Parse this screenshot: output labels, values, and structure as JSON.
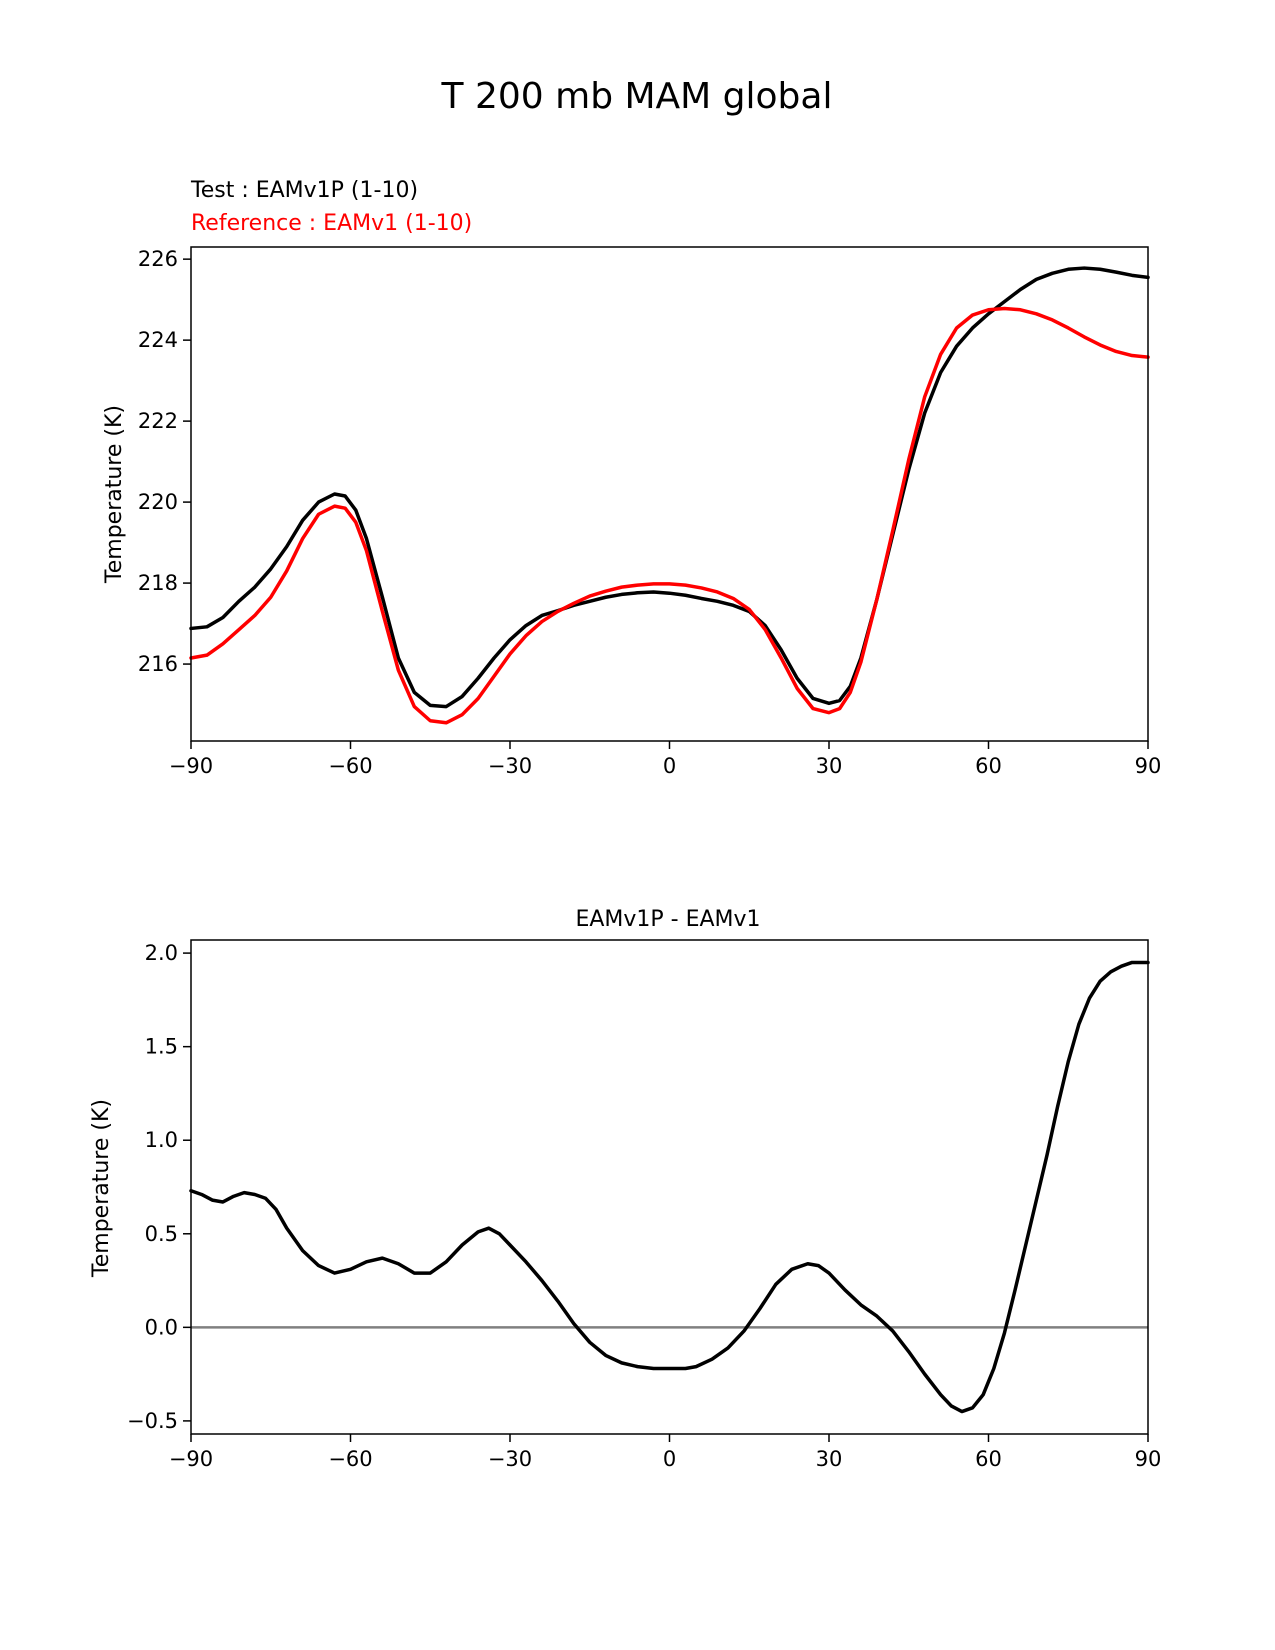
{
  "figure": {
    "title": "T 200 mb MAM global"
  },
  "chart_data": [
    {
      "type": "line",
      "test_label": "Test : EAMv1P (1-10)",
      "reference_label": "Reference : EAMv1 (1-10)",
      "ylabel": "Temperature (K)",
      "xlabel": "",
      "xlim": [
        -90,
        90
      ],
      "ylim": [
        214.1,
        226.3
      ],
      "xticks": [
        -90,
        -60,
        -30,
        0,
        30,
        60,
        90
      ],
      "xtick_labels": [
        "−90",
        "−60",
        "−30",
        "0",
        "30",
        "60",
        "90"
      ],
      "yticks": [
        216,
        218,
        220,
        222,
        224,
        226
      ],
      "ytick_labels": [
        "216",
        "218",
        "220",
        "222",
        "224",
        "226"
      ],
      "series": [
        {
          "name": "Test : EAMv1P (1-10)",
          "color": "#000000",
          "x": [
            -90,
            -87,
            -84,
            -81,
            -78,
            -75,
            -72,
            -69,
            -66,
            -63,
            -61,
            -59,
            -57,
            -54,
            -51,
            -48,
            -45,
            -42,
            -39,
            -36,
            -33,
            -30,
            -27,
            -24,
            -21,
            -18,
            -15,
            -12,
            -9,
            -6,
            -3,
            0,
            3,
            6,
            9,
            12,
            15,
            18,
            21,
            24,
            27,
            30,
            32,
            34,
            36,
            39,
            42,
            45,
            48,
            51,
            54,
            57,
            60,
            63,
            66,
            69,
            72,
            75,
            78,
            81,
            84,
            87,
            90
          ],
          "values": [
            216.88,
            216.92,
            217.15,
            217.55,
            217.9,
            218.35,
            218.9,
            219.55,
            220.0,
            220.2,
            220.15,
            219.8,
            219.1,
            217.65,
            216.15,
            215.3,
            214.98,
            214.95,
            215.2,
            215.65,
            216.15,
            216.6,
            216.95,
            217.2,
            217.32,
            217.45,
            217.55,
            217.65,
            217.72,
            217.76,
            217.78,
            217.75,
            217.7,
            217.62,
            217.55,
            217.45,
            217.3,
            216.95,
            216.35,
            215.65,
            215.15,
            215.03,
            215.1,
            215.45,
            216.15,
            217.6,
            219.2,
            220.8,
            222.2,
            223.2,
            223.85,
            224.3,
            224.65,
            224.95,
            225.25,
            225.5,
            225.65,
            225.75,
            225.78,
            225.75,
            225.68,
            225.6,
            225.55
          ]
        },
        {
          "name": "Reference : EAMv1 (1-10)",
          "color": "#ff0000",
          "x": [
            -90,
            -87,
            -84,
            -81,
            -78,
            -75,
            -72,
            -69,
            -66,
            -63,
            -61,
            -59,
            -57,
            -54,
            -51,
            -48,
            -45,
            -42,
            -39,
            -36,
            -33,
            -30,
            -27,
            -24,
            -21,
            -18,
            -15,
            -12,
            -9,
            -6,
            -3,
            0,
            3,
            6,
            9,
            12,
            15,
            18,
            21,
            24,
            27,
            30,
            32,
            34,
            36,
            39,
            42,
            45,
            48,
            51,
            54,
            57,
            60,
            63,
            66,
            69,
            72,
            75,
            78,
            81,
            84,
            87,
            90
          ],
          "values": [
            216.15,
            216.22,
            216.5,
            216.85,
            217.2,
            217.65,
            218.3,
            219.1,
            219.7,
            219.9,
            219.85,
            219.5,
            218.8,
            217.3,
            215.85,
            214.95,
            214.6,
            214.55,
            214.75,
            215.15,
            215.7,
            216.25,
            216.7,
            217.05,
            217.3,
            217.5,
            217.68,
            217.8,
            217.9,
            217.95,
            217.98,
            217.98,
            217.95,
            217.88,
            217.78,
            217.62,
            217.35,
            216.85,
            216.15,
            215.4,
            214.9,
            214.8,
            214.9,
            215.3,
            216.05,
            217.6,
            219.3,
            221.05,
            222.6,
            223.65,
            224.3,
            224.62,
            224.75,
            224.78,
            224.75,
            224.65,
            224.5,
            224.3,
            224.08,
            223.88,
            223.72,
            223.62,
            223.58
          ]
        }
      ]
    },
    {
      "type": "line",
      "title": "EAMv1P - EAMv1",
      "ylabel": "Temperature (K)",
      "xlabel": "",
      "xlim": [
        -90,
        90
      ],
      "ylim": [
        -0.57,
        2.07
      ],
      "xticks": [
        -90,
        -60,
        -30,
        0,
        30,
        60,
        90
      ],
      "xtick_labels": [
        "−90",
        "−60",
        "−30",
        "0",
        "30",
        "60",
        "90"
      ],
      "yticks": [
        -0.5,
        0.0,
        0.5,
        1.0,
        1.5,
        2.0
      ],
      "ytick_labels": [
        "−0.5",
        "0.0",
        "0.5",
        "1.0",
        "1.5",
        "2.0"
      ],
      "zero_line_color": "#808080",
      "series": [
        {
          "name": "",
          "color": "#000000",
          "x": [
            -90,
            -88,
            -86,
            -84,
            -82,
            -80,
            -78,
            -76,
            -74,
            -72,
            -69,
            -66,
            -63,
            -60,
            -57,
            -54,
            -51,
            -48,
            -45,
            -42,
            -39,
            -36,
            -34,
            -32,
            -30,
            -27,
            -24,
            -21,
            -18,
            -15,
            -12,
            -9,
            -6,
            -3,
            0,
            3,
            5,
            8,
            11,
            14,
            17,
            20,
            23,
            26,
            28,
            30,
            33,
            36,
            39,
            42,
            45,
            48,
            51,
            53,
            55,
            57,
            59,
            61,
            63,
            65,
            67,
            69,
            71,
            73,
            75,
            77,
            79,
            81,
            83,
            85,
            87,
            90
          ],
          "values": [
            0.73,
            0.71,
            0.68,
            0.67,
            0.7,
            0.72,
            0.71,
            0.69,
            0.63,
            0.53,
            0.41,
            0.33,
            0.29,
            0.31,
            0.35,
            0.37,
            0.34,
            0.29,
            0.29,
            0.35,
            0.44,
            0.51,
            0.53,
            0.5,
            0.44,
            0.35,
            0.25,
            0.14,
            0.02,
            -0.08,
            -0.15,
            -0.19,
            -0.21,
            -0.22,
            -0.22,
            -0.22,
            -0.21,
            -0.17,
            -0.11,
            -0.02,
            0.1,
            0.23,
            0.31,
            0.34,
            0.33,
            0.29,
            0.2,
            0.12,
            0.06,
            -0.02,
            -0.13,
            -0.25,
            -0.36,
            -0.42,
            -0.45,
            -0.43,
            -0.36,
            -0.22,
            -0.03,
            0.2,
            0.44,
            0.68,
            0.92,
            1.18,
            1.42,
            1.62,
            1.76,
            1.85,
            1.9,
            1.93,
            1.95,
            1.95
          ]
        }
      ]
    }
  ]
}
